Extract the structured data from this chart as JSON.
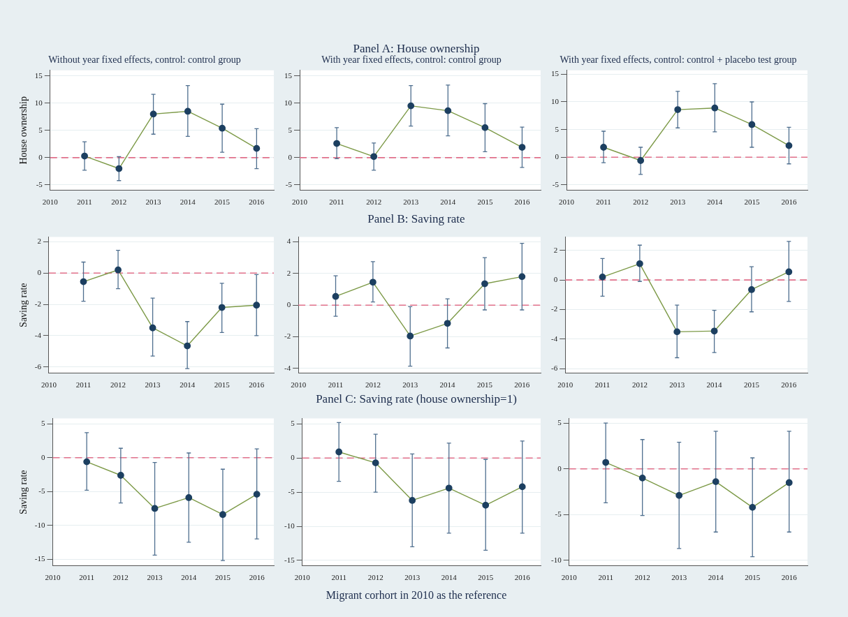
{
  "chart_data": [
    {
      "type": "line",
      "title": "Without year fixed effects, control: control group",
      "ylabel": "House ownership",
      "xlim": [
        2010,
        2016.5
      ],
      "xticks": [
        2010,
        2011,
        2012,
        2013,
        2014,
        2015,
        2016
      ],
      "ylim": [
        -6,
        16
      ],
      "yticks": [
        -5,
        0,
        5,
        10,
        15
      ],
      "grid": "y",
      "marker": "circle",
      "line_style": "solid",
      "ref_lines": [
        {
          "axis": "y",
          "value": 0,
          "color": "#e0708a",
          "line_style": "dashed"
        }
      ],
      "series": [
        {
          "color": "#7d9a48",
          "x": [
            2011,
            2012,
            2013,
            2014,
            2015,
            2016
          ],
          "values": [
            0.3,
            -2,
            8,
            8.5,
            5.4,
            1.7
          ],
          "errors": [
            [
              -2.3,
              2.9
            ],
            [
              -4.2,
              0.2
            ],
            [
              4.3,
              11.6
            ],
            [
              3.9,
              13.2
            ],
            [
              1.0,
              9.8
            ],
            [
              -2.0,
              5.3
            ]
          ]
        }
      ]
    },
    {
      "type": "line",
      "title": "With year fixed effects, control: control group",
      "subtitle": "Panel A: House ownership",
      "xlim": [
        2010,
        2016.5
      ],
      "xticks": [
        2010,
        2011,
        2012,
        2013,
        2014,
        2015,
        2016
      ],
      "ylim": [
        -6,
        16
      ],
      "yticks": [
        -5,
        0,
        5,
        10,
        15
      ],
      "grid": "y",
      "marker": "circle",
      "line_style": "solid",
      "ref_lines": [
        {
          "axis": "y",
          "value": 0,
          "color": "#e0708a",
          "line_style": "dashed"
        }
      ],
      "series": [
        {
          "color": "#7d9a48",
          "x": [
            2011,
            2012,
            2013,
            2014,
            2015,
            2016
          ],
          "values": [
            2.6,
            0.2,
            9.5,
            8.6,
            5.5,
            1.9
          ],
          "errors": [
            [
              -0.2,
              5.5
            ],
            [
              -2.3,
              2.7
            ],
            [
              5.8,
              13.2
            ],
            [
              4.0,
              13.3
            ],
            [
              1.1,
              9.9
            ],
            [
              -1.8,
              5.6
            ]
          ]
        }
      ]
    },
    {
      "type": "line",
      "title": "With year fixed effects, control: control + placebo test group",
      "xlim": [
        2010,
        2016.5
      ],
      "xticks": [
        2010,
        2011,
        2012,
        2013,
        2014,
        2015,
        2016
      ],
      "ylim": [
        -6,
        15.7
      ],
      "yticks": [
        -5,
        0,
        5,
        10,
        15
      ],
      "grid": "y",
      "marker": "circle",
      "line_style": "solid",
      "ref_lines": [
        {
          "axis": "y",
          "value": 0,
          "color": "#e0708a",
          "line_style": "dashed"
        }
      ],
      "series": [
        {
          "color": "#7d9a48",
          "x": [
            2011,
            2012,
            2013,
            2014,
            2015,
            2016
          ],
          "values": [
            1.8,
            -0.6,
            8.6,
            8.9,
            5.9,
            2.1
          ],
          "errors": [
            [
              -1.0,
              4.7
            ],
            [
              -3.1,
              1.8
            ],
            [
              5.3,
              11.9
            ],
            [
              4.6,
              13.3
            ],
            [
              1.8,
              10.0
            ],
            [
              -1.2,
              5.4
            ]
          ]
        }
      ]
    },
    {
      "type": "line",
      "ylabel": "Saving rate",
      "xlim": [
        2010,
        2016.5
      ],
      "xticks": [
        2010,
        2011,
        2012,
        2013,
        2014,
        2015,
        2016
      ],
      "ylim": [
        -6.4,
        2.3
      ],
      "yticks": [
        -6,
        -4,
        -2,
        0,
        2
      ],
      "grid": "y",
      "marker": "circle",
      "line_style": "solid",
      "ref_lines": [
        {
          "axis": "y",
          "value": 0,
          "color": "#e0708a",
          "line_style": "dashed"
        }
      ],
      "series": [
        {
          "color": "#7d9a48",
          "x": [
            2011,
            2012,
            2013,
            2014,
            2015,
            2016
          ],
          "values": [
            -0.55,
            0.2,
            -3.5,
            -4.65,
            -2.2,
            -2.05
          ],
          "errors": [
            [
              -1.8,
              0.7
            ],
            [
              -1.0,
              1.45
            ],
            [
              -5.3,
              -1.6
            ],
            [
              -6.1,
              -3.1
            ],
            [
              -3.8,
              -0.65
            ],
            [
              -4.0,
              -0.1
            ]
          ]
        }
      ]
    },
    {
      "type": "line",
      "subtitle": "Panel B: Saving rate",
      "xlim": [
        2010,
        2016.5
      ],
      "xticks": [
        2010,
        2011,
        2012,
        2013,
        2014,
        2015,
        2016
      ],
      "ylim": [
        -4.3,
        4.3
      ],
      "yticks": [
        -4,
        -2,
        0,
        2,
        4
      ],
      "grid": "y",
      "marker": "circle",
      "line_style": "solid",
      "ref_lines": [
        {
          "axis": "y",
          "value": 0,
          "color": "#e0708a",
          "line_style": "dashed"
        }
      ],
      "series": [
        {
          "color": "#7d9a48",
          "x": [
            2011,
            2012,
            2013,
            2014,
            2015,
            2016
          ],
          "values": [
            0.55,
            1.45,
            -1.95,
            -1.15,
            1.35,
            1.8
          ],
          "errors": [
            [
              -0.7,
              1.85
            ],
            [
              0.2,
              2.75
            ],
            [
              -3.85,
              -0.1
            ],
            [
              -2.7,
              0.4
            ],
            [
              -0.3,
              3.0
            ],
            [
              -0.3,
              3.9
            ]
          ]
        }
      ]
    },
    {
      "type": "line",
      "xlim": [
        2010,
        2016.5
      ],
      "xticks": [
        2010,
        2011,
        2012,
        2013,
        2014,
        2015,
        2016
      ],
      "ylim": [
        -6.3,
        2.9
      ],
      "yticks": [
        -6,
        -4,
        -2,
        0,
        2
      ],
      "grid": "y",
      "marker": "circle",
      "line_style": "solid",
      "ref_lines": [
        {
          "axis": "y",
          "value": 0,
          "color": "#e0708a",
          "line_style": "dashed"
        }
      ],
      "series": [
        {
          "color": "#7d9a48",
          "x": [
            2011,
            2012,
            2013,
            2014,
            2015,
            2016
          ],
          "values": [
            0.2,
            1.1,
            -3.5,
            -3.45,
            -0.65,
            0.55
          ],
          "errors": [
            [
              -1.1,
              1.45
            ],
            [
              -0.1,
              2.35
            ],
            [
              -5.25,
              -1.7
            ],
            [
              -4.9,
              -2.05
            ],
            [
              -2.15,
              0.9
            ],
            [
              -1.45,
              2.6
            ]
          ]
        }
      ]
    },
    {
      "type": "line",
      "ylabel": "Saving rate",
      "xlim": [
        2010,
        2016.5
      ],
      "xticks": [
        2010,
        2011,
        2012,
        2013,
        2014,
        2015,
        2016
      ],
      "ylim": [
        -16,
        5.8
      ],
      "yticks": [
        -15,
        -10,
        -5,
        0,
        5
      ],
      "grid": "y",
      "marker": "circle",
      "line_style": "solid",
      "ref_lines": [
        {
          "axis": "y",
          "value": 0,
          "color": "#e0708a",
          "line_style": "dashed"
        }
      ],
      "series": [
        {
          "color": "#7d9a48",
          "x": [
            2011,
            2012,
            2013,
            2014,
            2015,
            2016
          ],
          "values": [
            -0.6,
            -2.6,
            -7.5,
            -5.9,
            -8.4,
            -5.4
          ],
          "errors": [
            [
              -4.8,
              3.7
            ],
            [
              -6.7,
              1.4
            ],
            [
              -14.4,
              -0.7
            ],
            [
              -12.5,
              0.7
            ],
            [
              -15.2,
              -1.7
            ],
            [
              -12.0,
              1.3
            ]
          ]
        }
      ]
    },
    {
      "type": "line",
      "subtitle": "Panel C: Saving rate (house ownership=1)",
      "annotations": [
        "Migrant corhort in 2010 as the reference"
      ],
      "xlim": [
        2010,
        2016.5
      ],
      "xticks": [
        2010,
        2011,
        2012,
        2013,
        2014,
        2015,
        2016
      ],
      "ylim": [
        -15.8,
        5.8
      ],
      "yticks": [
        -15,
        -10,
        -5,
        0,
        5
      ],
      "grid": "y",
      "marker": "circle",
      "line_style": "solid",
      "ref_lines": [
        {
          "axis": "y",
          "value": 0,
          "color": "#e0708a",
          "line_style": "dashed"
        }
      ],
      "series": [
        {
          "color": "#7d9a48",
          "x": [
            2011,
            2012,
            2013,
            2014,
            2015,
            2016
          ],
          "values": [
            0.9,
            -0.7,
            -6.2,
            -4.4,
            -6.9,
            -4.2
          ],
          "errors": [
            [
              -3.4,
              5.2
            ],
            [
              -5.0,
              3.5
            ],
            [
              -13.0,
              0.6
            ],
            [
              -11.0,
              2.2
            ],
            [
              -13.5,
              -0.2
            ],
            [
              -11.0,
              2.5
            ]
          ]
        }
      ]
    },
    {
      "type": "line",
      "xlim": [
        2010,
        2016.5
      ],
      "xticks": [
        2010,
        2011,
        2012,
        2013,
        2014,
        2015,
        2016
      ],
      "ylim": [
        -10.6,
        5.5
      ],
      "yticks": [
        -10,
        -5,
        0,
        5
      ],
      "grid": "y",
      "marker": "circle",
      "line_style": "solid",
      "ref_lines": [
        {
          "axis": "y",
          "value": 0,
          "color": "#e0708a",
          "line_style": "dashed"
        }
      ],
      "series": [
        {
          "color": "#7d9a48",
          "x": [
            2011,
            2012,
            2013,
            2014,
            2015,
            2016
          ],
          "values": [
            0.7,
            -1.0,
            -2.9,
            -1.4,
            -4.2,
            -1.5
          ],
          "errors": [
            [
              -3.7,
              5.0
            ],
            [
              -5.1,
              3.2
            ],
            [
              -8.7,
              2.9
            ],
            [
              -6.9,
              4.1
            ],
            [
              -9.6,
              1.2
            ],
            [
              -6.9,
              4.1
            ]
          ]
        }
      ]
    }
  ]
}
